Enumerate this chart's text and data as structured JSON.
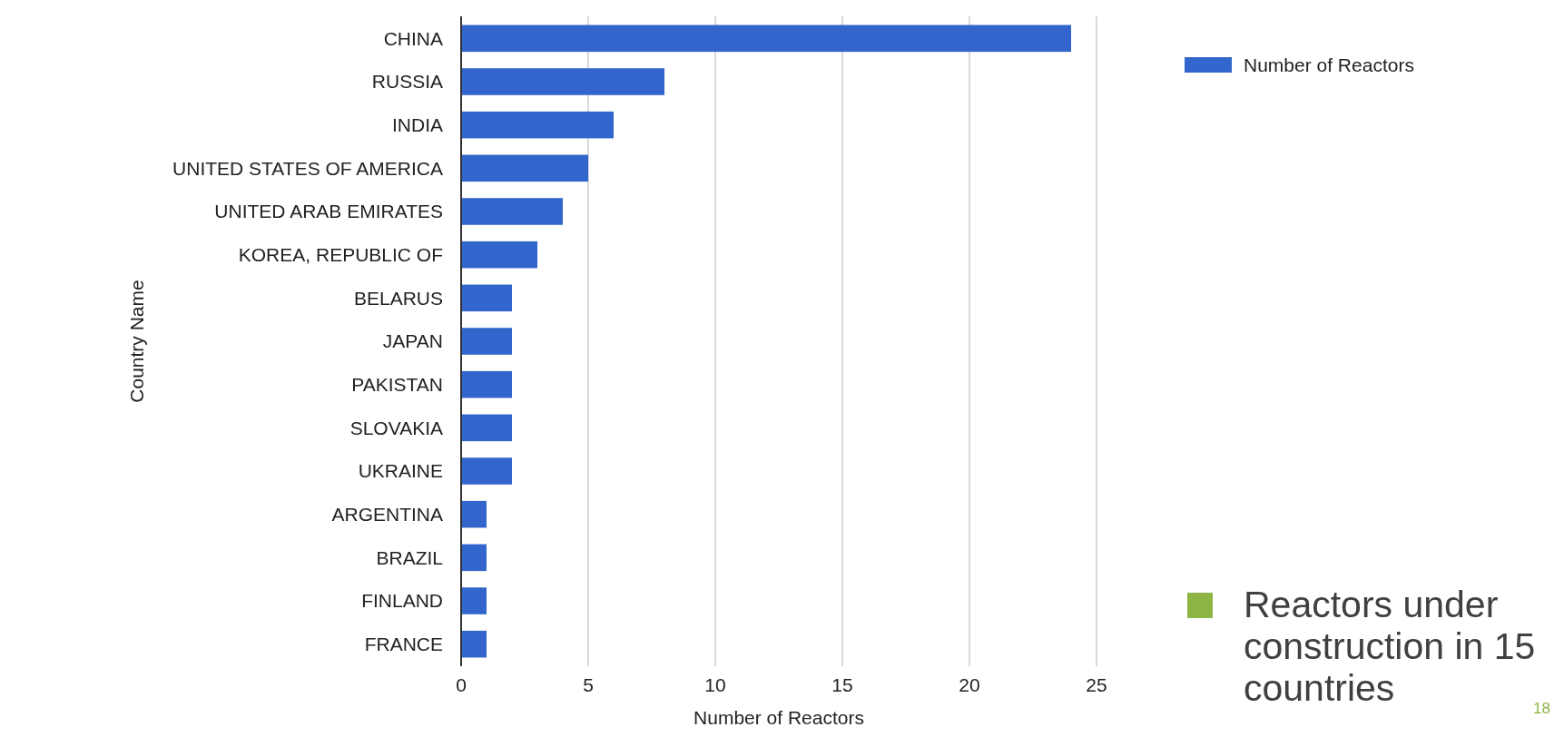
{
  "chart_data": {
    "type": "bar",
    "orientation": "horizontal",
    "categories": [
      "CHINA",
      "RUSSIA",
      "INDIA",
      "UNITED STATES OF AMERICA",
      "UNITED ARAB EMIRATES",
      "KOREA, REPUBLIC OF",
      "BELARUS",
      "JAPAN",
      "PAKISTAN",
      "SLOVAKIA",
      "UKRAINE",
      "ARGENTINA",
      "BRAZIL",
      "FINLAND",
      "FRANCE"
    ],
    "series": [
      {
        "name": "Number of Reactors",
        "color": "#3366cc",
        "values": [
          24,
          8,
          6,
          5,
          4,
          3,
          2,
          2,
          2,
          2,
          2,
          1,
          1,
          1,
          1
        ]
      }
    ],
    "xlim": [
      0,
      25
    ],
    "xticks": [
      0,
      5,
      10,
      15,
      20,
      25
    ],
    "grid": "x",
    "legend": "top right",
    "xlabel": "Number of Reactors",
    "ylabel": "Country Name",
    "annotations": [
      "Reactors under construction in 15 countries",
      "18"
    ]
  }
}
